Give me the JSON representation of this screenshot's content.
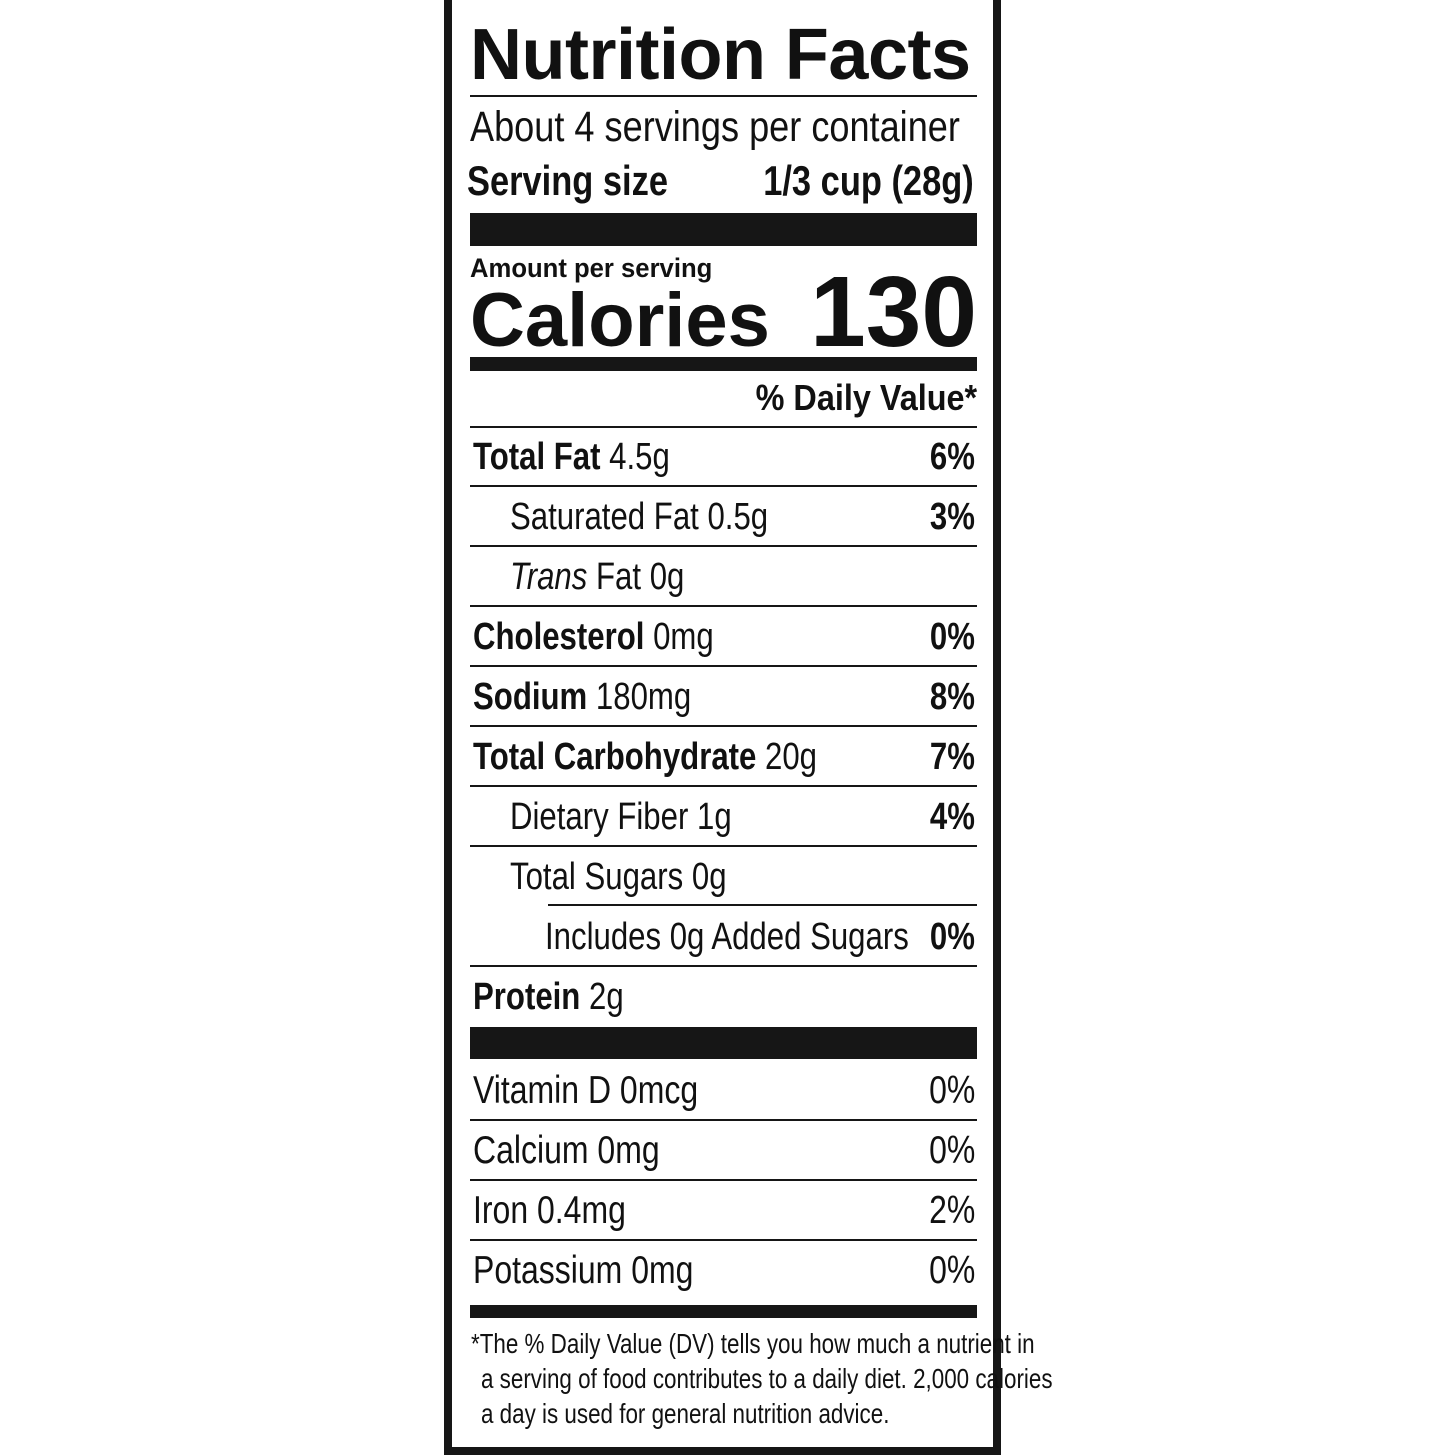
{
  "title": "Nutrition Facts",
  "servings_per_container": "About 4 servings per container",
  "serving_size": {
    "label": "Serving size",
    "value": "1/3 cup (28g)"
  },
  "amount_per_serving": "Amount per serving",
  "calories": {
    "label": "Calories",
    "value": "130"
  },
  "daily_value_header": "% Daily Value*",
  "nutrients": [
    {
      "name": "Total Fat",
      "amount": "4.5g",
      "dv": "6%"
    },
    {
      "name": "Saturated Fat",
      "amount": "0.5g",
      "dv": "3%"
    },
    {
      "name_italic": "Trans",
      "name": "Fat",
      "amount": "0g",
      "dv": ""
    },
    {
      "name": "Cholesterol",
      "amount": "0mg",
      "dv": "0%"
    },
    {
      "name": "Sodium",
      "amount": "180mg",
      "dv": "8%"
    },
    {
      "name": "Total Carbohydrate",
      "amount": "20g",
      "dv": "7%"
    },
    {
      "name": "Dietary Fiber",
      "amount": "1g",
      "dv": "4%"
    },
    {
      "name": "Total Sugars",
      "amount": "0g",
      "dv": ""
    },
    {
      "name": "Includes 0g Added Sugars",
      "amount": "",
      "dv": "0%"
    },
    {
      "name": "Protein",
      "amount": "2g",
      "dv": ""
    }
  ],
  "vitamins": [
    {
      "name": "Vitamin D",
      "amount": "0mcg",
      "dv": "0%"
    },
    {
      "name": "Calcium",
      "amount": "0mg",
      "dv": "0%"
    },
    {
      "name": "Iron",
      "amount": "0.4mg",
      "dv": "2%"
    },
    {
      "name": "Potassium",
      "amount": "0mg",
      "dv": "0%"
    }
  ],
  "footnote": [
    "*The % Daily Value (DV) tells you how much a nutrient in",
    "a serving of food contributes to a daily diet. 2,000 calories",
    "a day is used for general nutrition advice."
  ]
}
